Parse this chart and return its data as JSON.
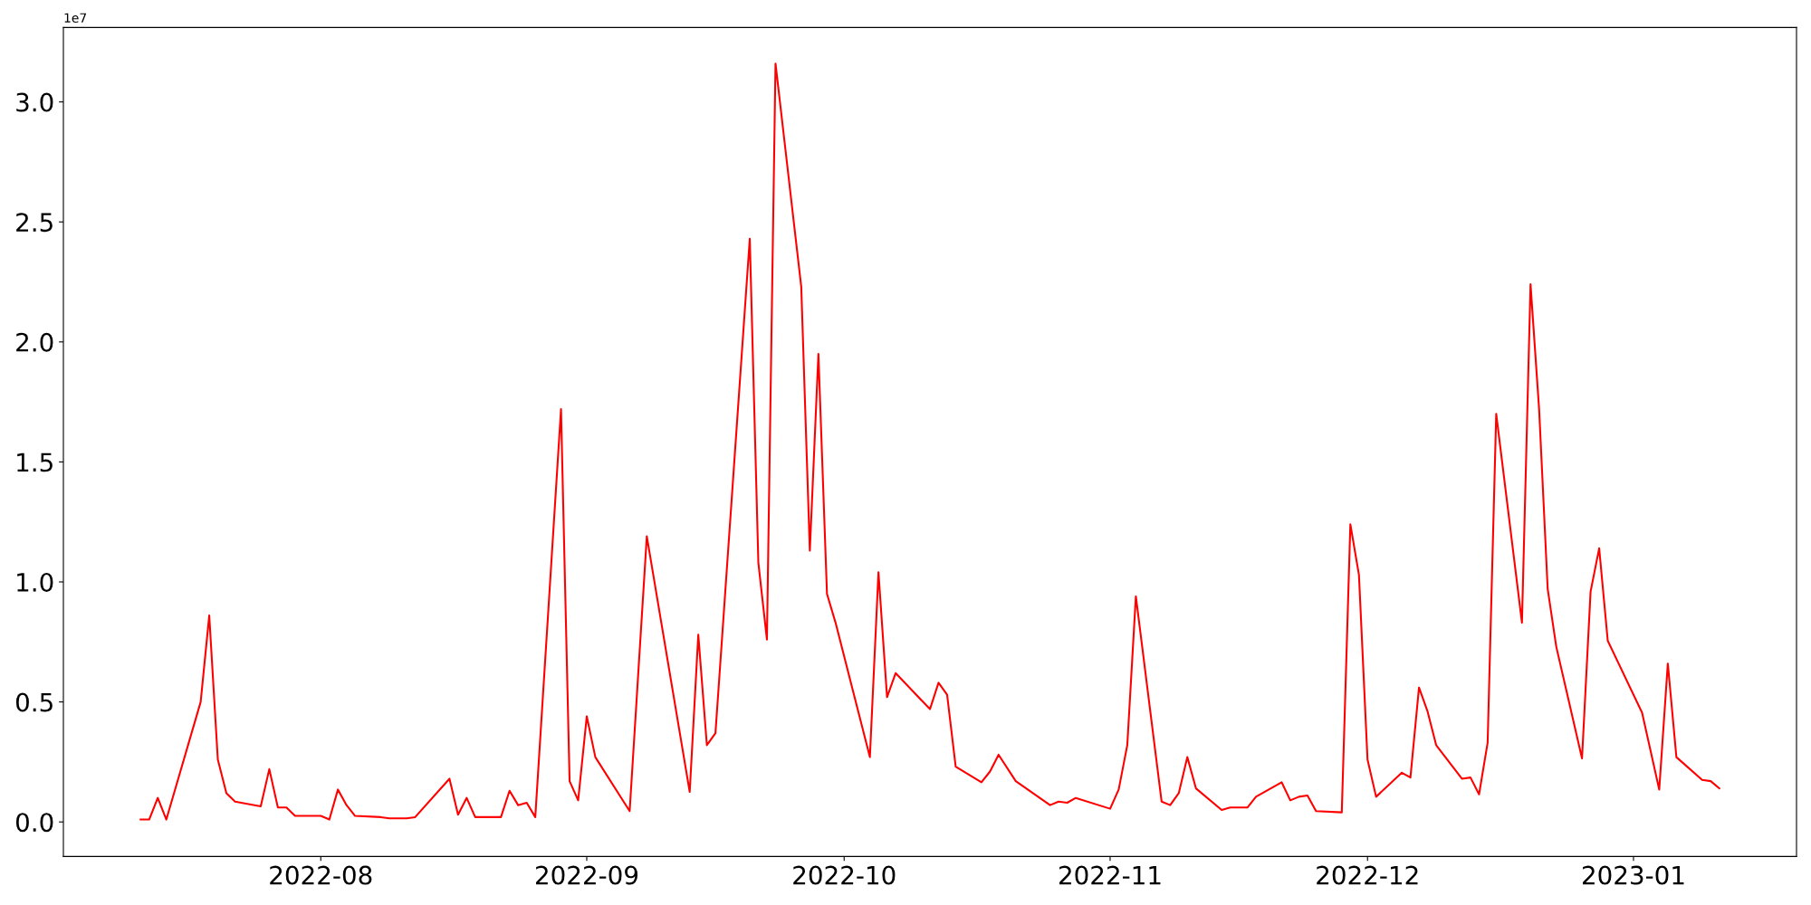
{
  "chart_data": {
    "type": "line",
    "annotations": [
      "1e7"
    ],
    "x": [
      "2022-07-11",
      "2022-07-12",
      "2022-07-13",
      "2022-07-14",
      "2022-07-18",
      "2022-07-19",
      "2022-07-20",
      "2022-07-21",
      "2022-07-22",
      "2022-07-25",
      "2022-07-26",
      "2022-07-27",
      "2022-07-28",
      "2022-07-29",
      "2022-08-01",
      "2022-08-02",
      "2022-08-03",
      "2022-08-04",
      "2022-08-05",
      "2022-08-08",
      "2022-08-09",
      "2022-08-10",
      "2022-08-11",
      "2022-08-12",
      "2022-08-16",
      "2022-08-17",
      "2022-08-18",
      "2022-08-19",
      "2022-08-22",
      "2022-08-23",
      "2022-08-24",
      "2022-08-25",
      "2022-08-26",
      "2022-08-29",
      "2022-08-30",
      "2022-08-31",
      "2022-09-01",
      "2022-09-02",
      "2022-09-06",
      "2022-09-08",
      "2022-09-13",
      "2022-09-14",
      "2022-09-15",
      "2022-09-16",
      "2022-09-20",
      "2022-09-21",
      "2022-09-22",
      "2022-09-23",
      "2022-09-26",
      "2022-09-27",
      "2022-09-28",
      "2022-09-29",
      "2022-09-30",
      "2022-10-04",
      "2022-10-05",
      "2022-10-06",
      "2022-10-07",
      "2022-10-11",
      "2022-10-12",
      "2022-10-13",
      "2022-10-14",
      "2022-10-17",
      "2022-10-18",
      "2022-10-19",
      "2022-10-21",
      "2022-10-25",
      "2022-10-26",
      "2022-10-27",
      "2022-10-28",
      "2022-11-01",
      "2022-11-02",
      "2022-11-03",
      "2022-11-04",
      "2022-11-07",
      "2022-11-08",
      "2022-11-09",
      "2022-11-10",
      "2022-11-11",
      "2022-11-14",
      "2022-11-15",
      "2022-11-16",
      "2022-11-17",
      "2022-11-18",
      "2022-11-21",
      "2022-11-22",
      "2022-11-23",
      "2022-11-24",
      "2022-11-25",
      "2022-11-28",
      "2022-11-29",
      "2022-11-30",
      "2022-12-01",
      "2022-12-02",
      "2022-12-05",
      "2022-12-06",
      "2022-12-07",
      "2022-12-08",
      "2022-12-09",
      "2022-12-12",
      "2022-12-13",
      "2022-12-14",
      "2022-12-15",
      "2022-12-16",
      "2022-12-19",
      "2022-12-20",
      "2022-12-21",
      "2022-12-22",
      "2022-12-23",
      "2022-12-26",
      "2022-12-27",
      "2022-12-28",
      "2022-12-29",
      "2023-01-02",
      "2023-01-04",
      "2023-01-05",
      "2023-01-06",
      "2023-01-09",
      "2023-01-10",
      "2023-01-11"
    ],
    "series": [
      {
        "color": "#ff0000",
        "values": [
          0.01,
          0.01,
          0.1,
          0.01,
          0.5,
          0.86,
          0.26,
          0.12,
          0.085,
          0.065,
          0.22,
          0.06,
          0.06,
          0.025,
          0.025,
          0.01,
          0.135,
          0.07,
          0.025,
          0.02,
          0.015,
          0.015,
          0.015,
          0.02,
          0.18,
          0.03,
          0.1,
          0.02,
          0.02,
          0.13,
          0.07,
          0.08,
          0.02,
          1.72,
          0.17,
          0.09,
          0.44,
          0.27,
          0.045,
          1.19,
          0.125,
          0.78,
          0.32,
          0.37,
          2.43,
          1.08,
          0.76,
          3.16,
          2.23,
          1.13,
          1.95,
          0.95,
          0.83,
          0.27,
          1.04,
          0.52,
          0.62,
          0.47,
          0.58,
          0.53,
          0.23,
          0.165,
          0.21,
          0.28,
          0.17,
          0.07,
          0.085,
          0.08,
          0.1,
          0.055,
          0.135,
          0.32,
          0.94,
          0.085,
          0.07,
          0.12,
          0.27,
          0.14,
          0.05,
          0.06,
          0.06,
          0.06,
          0.105,
          0.165,
          0.09,
          0.105,
          0.11,
          0.045,
          0.04,
          1.24,
          1.03,
          0.26,
          0.105,
          0.205,
          0.185,
          0.56,
          0.46,
          0.32,
          0.18,
          0.185,
          0.115,
          0.33,
          1.7,
          0.83,
          2.24,
          1.72,
          0.97,
          0.73,
          0.265,
          0.96,
          1.14,
          0.755,
          0.455,
          0.135,
          0.66,
          0.27,
          0.175,
          0.17,
          0.14
        ]
      }
    ],
    "xlim": [
      "2022-07-02",
      "2023-01-20"
    ],
    "xticks": [
      {
        "value": "2022-08-01",
        "label": "2022-08"
      },
      {
        "value": "2022-09-01",
        "label": "2022-09"
      },
      {
        "value": "2022-10-01",
        "label": "2022-10"
      },
      {
        "value": "2022-11-01",
        "label": "2022-11"
      },
      {
        "value": "2022-12-01",
        "label": "2022-12"
      },
      {
        "value": "2023-01-01",
        "label": "2023-01"
      }
    ],
    "ylim": [
      -0.144,
      3.31
    ],
    "yticks": [
      {
        "value": 0,
        "label": "0.0"
      },
      {
        "value": 0.5,
        "label": "0.5"
      },
      {
        "value": 1,
        "label": "1.0"
      },
      {
        "value": 1.5,
        "label": "1.5"
      },
      {
        "value": 2,
        "label": "2.0"
      },
      {
        "value": 2.5,
        "label": "2.5"
      },
      {
        "value": 3,
        "label": "3.0"
      }
    ],
    "grid": false,
    "marker": "none",
    "line_style": "solid"
  }
}
